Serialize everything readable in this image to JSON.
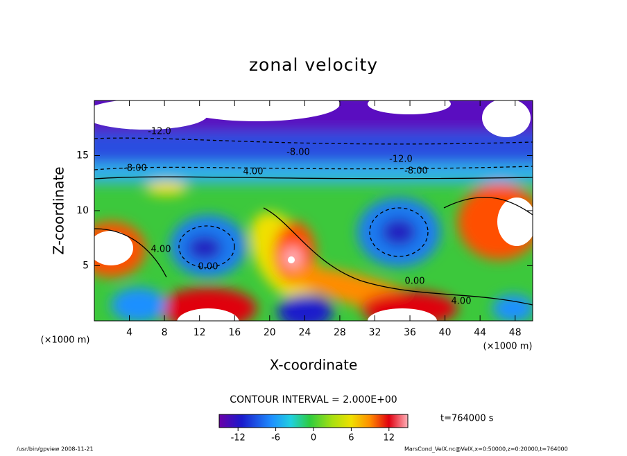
{
  "chart_data": {
    "type": "contour",
    "title": "zonal velocity",
    "xlabel": "X-coordinate",
    "ylabel": "Z-coordinate",
    "x_unit": "(×1000 m)",
    "y_unit": "(×1000 m)",
    "xlim": [
      0,
      50
    ],
    "xticks": [
      4,
      8,
      12,
      16,
      20,
      24,
      28,
      32,
      36,
      40,
      44,
      48
    ],
    "ylim": [
      0,
      20
    ],
    "yticks": [
      5,
      10,
      15
    ],
    "contour_labels": [
      "-12.0",
      "-8.00",
      "-8.00",
      "4.00",
      "-8.00",
      "-12.0",
      "4.00",
      "0.00",
      "0.00",
      "4.00"
    ],
    "contour_interval": "CONTOUR INTERVAL = 2.000E+00",
    "colorbar": {
      "lim": [
        -15,
        15
      ],
      "ticks": [
        -12,
        -6,
        0,
        6,
        12
      ]
    },
    "time": "t=764000 s",
    "footer_left": "/usr/bin/gpview   2008-11-21",
    "footer_right": "MarsCond_VelX.nc@VelX,x=0:50000,z=0:20000,t=764000"
  }
}
